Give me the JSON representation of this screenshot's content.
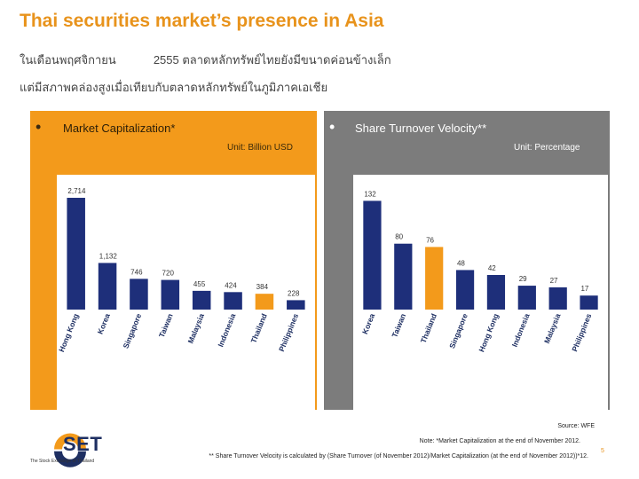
{
  "title": "Thai securities market’s presence in Asia",
  "subtitle_line1_part1": "ในเดือนพฤศจิกายน",
  "subtitle_line1_part2": "2555 ตลาดหลักทรัพย์ไทยยังมีขนาดค่อนข้างเล็ก",
  "subtitle_line2": "แต่มีสภาพคล่องสูงเมื่อเทียบกับตลาดหลักทรัพย์ในภูมิภาคเอเชีย",
  "left_panel": {
    "heading": "Market Capitalization*",
    "unit": "Unit: Billion USD"
  },
  "right_panel": {
    "heading": "Share Turnover Velocity**",
    "unit": "Unit: Percentage"
  },
  "chart_data": [
    {
      "type": "bar",
      "title": "Market Capitalization*",
      "unit": "Unit: Billion USD",
      "categories": [
        "Hong Kong",
        "Korea",
        "Singapore",
        "Taiwan",
        "Malaysia",
        "Indonesia",
        "Thailand",
        "Philippines"
      ],
      "values": [
        2714,
        1132,
        746,
        720,
        455,
        424,
        384,
        228
      ],
      "labels": [
        "2,714",
        "1,132",
        "746",
        "720",
        "455",
        "424",
        "384",
        "228"
      ],
      "highlight": "Thailand",
      "ylim": [
        0,
        2800
      ],
      "colors": {
        "bar": "#1E2F7A",
        "highlight": "#F39A1B"
      }
    },
    {
      "type": "bar",
      "title": "Share Turnover Velocity**",
      "unit": "Unit: Percentage",
      "categories": [
        "Korea",
        "Taiwan",
        "Thailand",
        "Singapore",
        "Hong Kong",
        "Indonesia",
        "Malaysia",
        "Philippines"
      ],
      "values": [
        132,
        80,
        76,
        48,
        42,
        29,
        27,
        17
      ],
      "labels": [
        "132",
        "80",
        "76",
        "48",
        "42",
        "29",
        "27",
        "17"
      ],
      "highlight": "Thailand",
      "ylim": [
        0,
        140
      ],
      "colors": {
        "bar": "#1E2F7A",
        "highlight": "#F39A1B"
      }
    }
  ],
  "footer": {
    "source": "Source: WFE",
    "note1": "Note: *Market Capitalization at the end of November 2012.",
    "note2": "** Share Turnover Velocity is calculated by (Share Turnover (of November 2012)/Market Capitalization (at the end of November 2012))*12.",
    "page": "5"
  },
  "logo": {
    "name": "SET",
    "tagline": "The Stock Exchange of Thailand"
  },
  "colors": {
    "accent": "#E8931C",
    "navy": "#1E2F7A",
    "gray_panel": "#7C7C7C"
  }
}
